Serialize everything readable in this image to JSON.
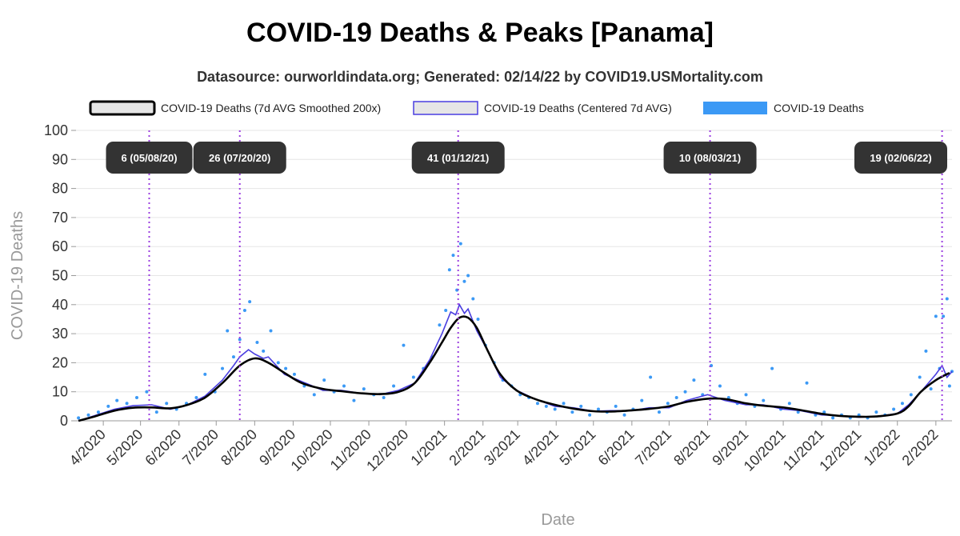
{
  "chart_data": {
    "type": "line",
    "title": "COVID-19 Deaths & Peaks [Panama]",
    "subtitle": "Datasource: ourworldindata.org; Generated: 02/14/22 by COVID19.USMortality.com",
    "xlabel": "Date",
    "ylabel": "COVID-19 Deaths",
    "x_start": "2020-03-10",
    "x_end": "2022-02-14",
    "ylim": [
      0,
      100
    ],
    "yticks": [
      0,
      10,
      20,
      30,
      40,
      50,
      60,
      70,
      80,
      90,
      100
    ],
    "xticks": [
      "4/2020",
      "5/2020",
      "6/2020",
      "7/2020",
      "8/2020",
      "9/2020",
      "10/2020",
      "11/2020",
      "12/2020",
      "1/2021",
      "2/2021",
      "3/2021",
      "4/2021",
      "5/2021",
      "6/2021",
      "7/2021",
      "8/2021",
      "9/2021",
      "10/2021",
      "11/2021",
      "12/2021",
      "1/2022",
      "2/2022"
    ],
    "xtick_dates": [
      "2020-04-01",
      "2020-05-01",
      "2020-06-01",
      "2020-07-01",
      "2020-08-01",
      "2020-09-01",
      "2020-10-01",
      "2020-11-01",
      "2020-12-01",
      "2021-01-01",
      "2021-02-01",
      "2021-03-01",
      "2021-04-01",
      "2021-05-01",
      "2021-06-01",
      "2021-07-01",
      "2021-08-01",
      "2021-09-01",
      "2021-10-01",
      "2021-11-01",
      "2021-12-01",
      "2022-01-01",
      "2022-02-01"
    ],
    "grid": true,
    "legend_position": "top",
    "series": [
      {
        "name": "COVID-19 Deaths (7d AVG Smoothed 200x)",
        "style": "smooth-line",
        "color": "#000000",
        "points": [
          [
            "2020-03-12",
            0
          ],
          [
            "2020-03-25",
            1.5
          ],
          [
            "2020-04-10",
            3.5
          ],
          [
            "2020-04-25",
            4.5
          ],
          [
            "2020-05-10",
            4.6
          ],
          [
            "2020-05-25",
            4.3
          ],
          [
            "2020-06-08",
            5.5
          ],
          [
            "2020-06-22",
            8
          ],
          [
            "2020-07-06",
            13
          ],
          [
            "2020-07-20",
            19
          ],
          [
            "2020-08-01",
            21.5
          ],
          [
            "2020-08-12",
            20
          ],
          [
            "2020-08-25",
            16.5
          ],
          [
            "2020-09-08",
            13
          ],
          [
            "2020-09-25",
            11
          ],
          [
            "2020-10-10",
            10.2
          ],
          [
            "2020-10-25",
            9.5
          ],
          [
            "2020-11-10",
            9.2
          ],
          [
            "2020-11-25",
            10
          ],
          [
            "2020-12-08",
            13
          ],
          [
            "2020-12-20",
            20
          ],
          [
            "2020-12-30",
            27
          ],
          [
            "2021-01-06",
            32
          ],
          [
            "2021-01-13",
            35.5
          ],
          [
            "2021-01-20",
            35.5
          ],
          [
            "2021-01-27",
            32
          ],
          [
            "2021-02-05",
            24
          ],
          [
            "2021-02-15",
            16
          ],
          [
            "2021-02-28",
            10.5
          ],
          [
            "2021-03-15",
            7.5
          ],
          [
            "2021-03-31",
            5.5
          ],
          [
            "2021-04-15",
            4.2
          ],
          [
            "2021-05-01",
            3.3
          ],
          [
            "2021-05-15",
            3.2
          ],
          [
            "2021-06-01",
            3.6
          ],
          [
            "2021-06-15",
            4.1
          ],
          [
            "2021-07-01",
            5
          ],
          [
            "2021-07-15",
            6.5
          ],
          [
            "2021-08-01",
            7.6
          ],
          [
            "2021-08-15",
            7.5
          ],
          [
            "2021-09-01",
            6
          ],
          [
            "2021-09-15",
            5.2
          ],
          [
            "2021-10-01",
            4.6
          ],
          [
            "2021-10-15",
            3.7
          ],
          [
            "2021-11-01",
            2.4
          ],
          [
            "2021-11-15",
            1.7
          ],
          [
            "2021-12-01",
            1.4
          ],
          [
            "2021-12-15",
            1.5
          ],
          [
            "2022-01-01",
            2.5
          ],
          [
            "2022-01-10",
            5
          ],
          [
            "2022-01-20",
            10
          ],
          [
            "2022-02-01",
            14
          ],
          [
            "2022-02-12",
            16.5
          ]
        ]
      },
      {
        "name": "COVID-19 Deaths (Centered 7d AVG)",
        "style": "jagged-line",
        "color": "#4a3fe0",
        "points": [
          [
            "2020-03-12",
            0
          ],
          [
            "2020-03-25",
            1.8
          ],
          [
            "2020-04-10",
            4
          ],
          [
            "2020-04-25",
            5.2
          ],
          [
            "2020-05-10",
            5.5
          ],
          [
            "2020-05-25",
            4
          ],
          [
            "2020-06-08",
            5.5
          ],
          [
            "2020-06-22",
            8.5
          ],
          [
            "2020-07-06",
            14
          ],
          [
            "2020-07-15",
            19
          ],
          [
            "2020-07-20",
            22
          ],
          [
            "2020-07-27",
            24.5
          ],
          [
            "2020-08-01",
            23
          ],
          [
            "2020-08-08",
            21.5
          ],
          [
            "2020-08-12",
            22
          ],
          [
            "2020-08-25",
            16
          ],
          [
            "2020-09-08",
            13.5
          ],
          [
            "2020-09-25",
            10.5
          ],
          [
            "2020-10-10",
            10.5
          ],
          [
            "2020-10-25",
            9.5
          ],
          [
            "2020-11-10",
            9
          ],
          [
            "2020-11-25",
            10.5
          ],
          [
            "2020-12-08",
            13
          ],
          [
            "2020-12-20",
            21
          ],
          [
            "2020-12-30",
            30
          ],
          [
            "2021-01-06",
            37.5
          ],
          [
            "2021-01-10",
            36.5
          ],
          [
            "2021-01-13",
            40
          ],
          [
            "2021-01-17",
            37
          ],
          [
            "2021-01-20",
            38.5
          ],
          [
            "2021-01-27",
            31
          ],
          [
            "2021-02-05",
            24
          ],
          [
            "2021-02-15",
            15
          ],
          [
            "2021-02-28",
            10.5
          ],
          [
            "2021-03-15",
            7.5
          ],
          [
            "2021-03-31",
            5
          ],
          [
            "2021-04-15",
            4.5
          ],
          [
            "2021-05-01",
            3.3
          ],
          [
            "2021-05-15",
            3.5
          ],
          [
            "2021-06-01",
            3.5
          ],
          [
            "2021-06-15",
            4.5
          ],
          [
            "2021-07-01",
            4.5
          ],
          [
            "2021-07-15",
            7
          ],
          [
            "2021-08-01",
            9
          ],
          [
            "2021-08-15",
            7
          ],
          [
            "2021-09-01",
            5.5
          ],
          [
            "2021-09-15",
            5.5
          ],
          [
            "2021-10-01",
            4
          ],
          [
            "2021-10-15",
            3.5
          ],
          [
            "2021-11-01",
            2
          ],
          [
            "2021-11-15",
            1.8
          ],
          [
            "2021-12-01",
            1.2
          ],
          [
            "2021-12-15",
            1.5
          ],
          [
            "2022-01-01",
            2.5
          ],
          [
            "2022-01-10",
            5.5
          ],
          [
            "2022-01-20",
            10
          ],
          [
            "2022-02-01",
            16
          ],
          [
            "2022-02-06",
            19
          ],
          [
            "2022-02-10",
            15
          ],
          [
            "2022-02-14",
            17
          ]
        ]
      },
      {
        "name": "COVID-19 Deaths",
        "style": "scatter",
        "color": "#3b99f5",
        "points": [
          [
            "2020-03-12",
            1
          ],
          [
            "2020-03-20",
            2
          ],
          [
            "2020-03-28",
            3
          ],
          [
            "2020-04-05",
            5
          ],
          [
            "2020-04-12",
            7
          ],
          [
            "2020-04-20",
            6
          ],
          [
            "2020-04-28",
            8
          ],
          [
            "2020-05-06",
            10
          ],
          [
            "2020-05-14",
            3
          ],
          [
            "2020-05-22",
            6
          ],
          [
            "2020-05-30",
            4
          ],
          [
            "2020-06-07",
            6
          ],
          [
            "2020-06-15",
            8
          ],
          [
            "2020-06-22",
            16
          ],
          [
            "2020-06-30",
            10
          ],
          [
            "2020-07-06",
            18
          ],
          [
            "2020-07-10",
            31
          ],
          [
            "2020-07-15",
            22
          ],
          [
            "2020-07-20",
            28
          ],
          [
            "2020-07-24",
            38
          ],
          [
            "2020-07-28",
            41
          ],
          [
            "2020-08-03",
            27
          ],
          [
            "2020-08-08",
            24
          ],
          [
            "2020-08-14",
            31
          ],
          [
            "2020-08-20",
            20
          ],
          [
            "2020-08-26",
            18
          ],
          [
            "2020-09-02",
            16
          ],
          [
            "2020-09-10",
            12
          ],
          [
            "2020-09-18",
            9
          ],
          [
            "2020-09-26",
            14
          ],
          [
            "2020-10-04",
            10
          ],
          [
            "2020-10-12",
            12
          ],
          [
            "2020-10-20",
            7
          ],
          [
            "2020-10-28",
            11
          ],
          [
            "2020-11-05",
            9
          ],
          [
            "2020-11-13",
            8
          ],
          [
            "2020-11-21",
            12
          ],
          [
            "2020-11-29",
            26
          ],
          [
            "2020-12-07",
            15
          ],
          [
            "2020-12-15",
            18
          ],
          [
            "2020-12-22",
            22
          ],
          [
            "2020-12-28",
            33
          ],
          [
            "2021-01-02",
            38
          ],
          [
            "2021-01-05",
            52
          ],
          [
            "2021-01-08",
            57
          ],
          [
            "2021-01-11",
            45
          ],
          [
            "2021-01-14",
            61
          ],
          [
            "2021-01-17",
            48
          ],
          [
            "2021-01-20",
            50
          ],
          [
            "2021-01-24",
            42
          ],
          [
            "2021-01-28",
            35
          ],
          [
            "2021-02-03",
            26
          ],
          [
            "2021-02-10",
            20
          ],
          [
            "2021-02-17",
            14
          ],
          [
            "2021-02-24",
            12
          ],
          [
            "2021-03-03",
            9
          ],
          [
            "2021-03-10",
            8
          ],
          [
            "2021-03-17",
            6
          ],
          [
            "2021-03-24",
            5
          ],
          [
            "2021-03-31",
            4
          ],
          [
            "2021-04-07",
            6
          ],
          [
            "2021-04-14",
            3
          ],
          [
            "2021-04-21",
            5
          ],
          [
            "2021-04-28",
            2
          ],
          [
            "2021-05-05",
            4
          ],
          [
            "2021-05-12",
            3
          ],
          [
            "2021-05-19",
            5
          ],
          [
            "2021-05-26",
            2
          ],
          [
            "2021-06-02",
            4
          ],
          [
            "2021-06-09",
            7
          ],
          [
            "2021-06-16",
            15
          ],
          [
            "2021-06-23",
            3
          ],
          [
            "2021-06-30",
            6
          ],
          [
            "2021-07-07",
            8
          ],
          [
            "2021-07-14",
            10
          ],
          [
            "2021-07-21",
            14
          ],
          [
            "2021-07-28",
            9
          ],
          [
            "2021-08-04",
            19
          ],
          [
            "2021-08-11",
            12
          ],
          [
            "2021-08-18",
            8
          ],
          [
            "2021-08-25",
            6
          ],
          [
            "2021-09-01",
            9
          ],
          [
            "2021-09-08",
            5
          ],
          [
            "2021-09-15",
            7
          ],
          [
            "2021-09-22",
            18
          ],
          [
            "2021-09-29",
            4
          ],
          [
            "2021-10-06",
            6
          ],
          [
            "2021-10-13",
            3
          ],
          [
            "2021-10-20",
            13
          ],
          [
            "2021-10-27",
            2
          ],
          [
            "2021-11-03",
            3
          ],
          [
            "2021-11-10",
            1
          ],
          [
            "2021-11-17",
            2
          ],
          [
            "2021-11-24",
            1
          ],
          [
            "2021-12-01",
            2
          ],
          [
            "2021-12-08",
            1
          ],
          [
            "2021-12-15",
            3
          ],
          [
            "2021-12-22",
            2
          ],
          [
            "2021-12-29",
            4
          ],
          [
            "2022-01-05",
            6
          ],
          [
            "2022-01-12",
            9
          ],
          [
            "2022-01-19",
            15
          ],
          [
            "2022-01-24",
            24
          ],
          [
            "2022-01-28",
            11
          ],
          [
            "2022-02-01",
            36
          ],
          [
            "2022-02-04",
            18
          ],
          [
            "2022-02-07",
            36
          ],
          [
            "2022-02-10",
            42
          ],
          [
            "2022-02-12",
            12
          ],
          [
            "2022-02-14",
            17
          ]
        ]
      }
    ],
    "peaks": [
      {
        "date": "2020-05-08",
        "label": "6 (05/08/20)"
      },
      {
        "date": "2020-07-20",
        "label": "26 (07/20/20)"
      },
      {
        "date": "2021-01-12",
        "label": "41 (01/12/21)"
      },
      {
        "date": "2021-08-03",
        "label": "10 (08/03/21)"
      },
      {
        "date": "2022-02-06",
        "label": "19 (02/06/22)"
      }
    ]
  },
  "colors": {
    "smoothed": "#000000",
    "centered": "#4a3fe0",
    "deaths": "#3b99f5",
    "peak_line": "#9b3fe0",
    "peak_box": "#333333",
    "grid": "#e6e6e6"
  }
}
